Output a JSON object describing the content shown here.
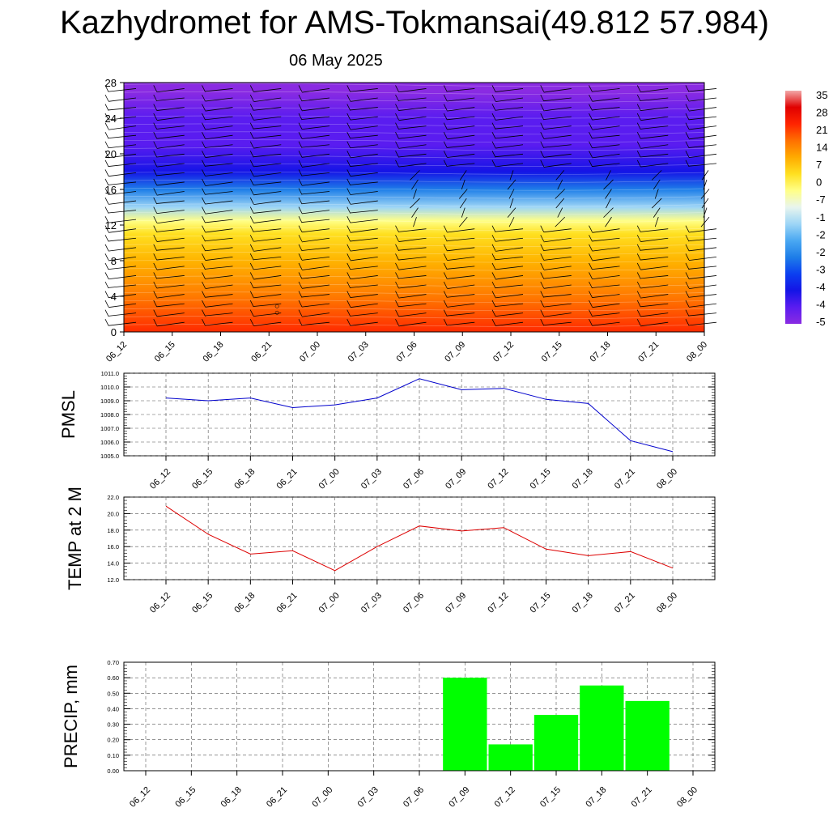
{
  "page": {
    "title": "Kazhydromet for AMS-Tokmansai(49.812 57.984)",
    "subtitle": "06 May 2025"
  },
  "time_labels": [
    "06_12",
    "06_15",
    "06_18",
    "06_21",
    "07_00",
    "07_03",
    "07_06",
    "07_09",
    "07_12",
    "07_15",
    "07_18",
    "07_21",
    "08_00"
  ],
  "colors": {
    "pmsl_line": "#0000cc",
    "temp_line": "#dd0000",
    "precip_bar": "#00ff00",
    "grid": "#555555"
  },
  "chart_data": [
    {
      "type": "heatmap",
      "title": "",
      "xlabel": "",
      "ylabel": "",
      "x": [
        "06_12",
        "06_15",
        "06_18",
        "06_21",
        "07_00",
        "07_03",
        "07_06",
        "07_09",
        "07_12",
        "07_15",
        "07_18",
        "07_21",
        "08_00"
      ],
      "ylim": [
        0,
        28
      ],
      "yticks": [
        "0",
        "4",
        "8",
        "12",
        "16",
        "20",
        "24",
        "28"
      ],
      "colorbar_labels": [
        "35",
        "28",
        "21",
        "14",
        "7",
        "0",
        "-7",
        "-1",
        "-2",
        "-2",
        "-3",
        "-4",
        "-4",
        "-5"
      ],
      "temperature_profile": [
        {
          "level": 0,
          "value": 21
        },
        {
          "level": 4,
          "value": 17
        },
        {
          "level": 8,
          "value": 7
        },
        {
          "level": 11,
          "value": 0
        },
        {
          "level": 12.5,
          "value": -7
        },
        {
          "level": 14,
          "value": -15
        },
        {
          "level": 16,
          "value": -30
        },
        {
          "level": 18,
          "value": -44
        },
        {
          "level": 21,
          "value": -50
        },
        {
          "level": 24,
          "value": -50
        },
        {
          "level": 27,
          "value": -56
        }
      ],
      "annotations": [
        "○",
        "○"
      ]
    },
    {
      "type": "line",
      "title": "",
      "ylabel": "PMSL",
      "xlabel": "",
      "categories": [
        "06_12",
        "06_15",
        "06_18",
        "06_21",
        "07_00",
        "07_03",
        "07_06",
        "07_09",
        "07_12",
        "07_15",
        "07_18",
        "07_21",
        "08_00"
      ],
      "values": [
        1009.2,
        1009.0,
        1009.2,
        1008.5,
        1008.7,
        1009.2,
        1010.6,
        1009.8,
        1009.9,
        1009.1,
        1008.8,
        1006.1,
        1005.3
      ],
      "ylim": [
        1005.0,
        1011.0
      ],
      "yticks": [
        "1005.0",
        "1006.0",
        "1007.0",
        "1008.0",
        "1009.0",
        "1010.0",
        "1011.0"
      ],
      "grid": true
    },
    {
      "type": "line",
      "title": "",
      "ylabel": "TEMP at 2 M",
      "xlabel": "",
      "categories": [
        "06_12",
        "06_15",
        "06_18",
        "06_21",
        "07_00",
        "07_03",
        "07_06",
        "07_09",
        "07_12",
        "07_15",
        "07_18",
        "07_21",
        "08_00"
      ],
      "values": [
        20.9,
        17.5,
        15.1,
        15.5,
        13.1,
        16.0,
        18.5,
        17.9,
        18.3,
        15.7,
        14.9,
        15.4,
        13.4
      ],
      "ylim": [
        12.0,
        22.0
      ],
      "yticks": [
        "12.0",
        "14.0",
        "16.0",
        "18.0",
        "20.0",
        "22.0"
      ],
      "grid": true
    },
    {
      "type": "bar",
      "title": "",
      "ylabel": "PRECIP, mm",
      "xlabel": "",
      "categories": [
        "06_12",
        "06_15",
        "06_18",
        "06_21",
        "07_00",
        "07_03",
        "07_06",
        "07_09",
        "07_12",
        "07_15",
        "07_18",
        "07_21",
        "08_00"
      ],
      "values": [
        0,
        0,
        0,
        0,
        0,
        0,
        0,
        0.6,
        0.17,
        0.36,
        0.55,
        0.45,
        0
      ],
      "ylim": [
        0.0,
        0.7
      ],
      "yticks": [
        "0.00",
        "0.10",
        "0.20",
        "0.30",
        "0.40",
        "0.50",
        "0.60",
        "0.70"
      ],
      "grid": true
    }
  ]
}
